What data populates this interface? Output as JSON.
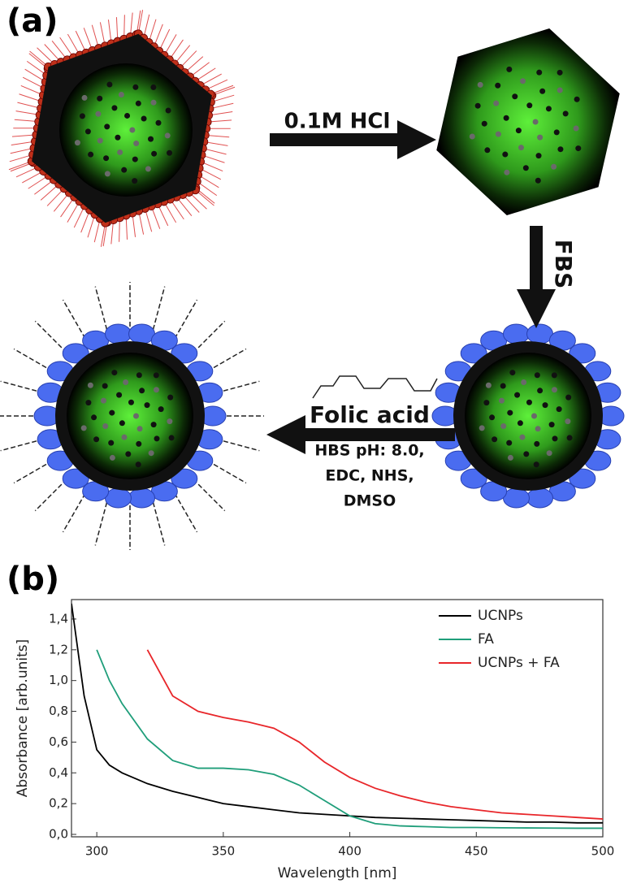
{
  "panel_a": {
    "label": "(a)",
    "step_1": "0.1M HCl",
    "step_2": "FBS",
    "step_3": {
      "title": "Folic acid",
      "conditions": [
        "HBS pH: 8.0,",
        "EDC, NHS,",
        "DMSO"
      ]
    }
  },
  "chart_data": {
    "type": "line",
    "panel_label": "(b)",
    "x_label": "Wavelength [nm]",
    "y_label": "Absorbance [arb.units]",
    "x": [
      290,
      295,
      300,
      305,
      310,
      320,
      330,
      340,
      350,
      360,
      370,
      380,
      390,
      400,
      410,
      420,
      430,
      440,
      450,
      460,
      470,
      480,
      490,
      500
    ],
    "series": [
      {
        "name": "UCNPs",
        "color": "#000000",
        "values": [
          1.5,
          0.9,
          0.55,
          0.45,
          0.4,
          0.33,
          0.28,
          0.24,
          0.2,
          0.18,
          0.16,
          0.14,
          0.13,
          0.12,
          0.11,
          0.105,
          0.1,
          0.095,
          0.09,
          0.085,
          0.08,
          0.08,
          0.075,
          0.075
        ]
      },
      {
        "name": "FA",
        "color": "#1f9e7a",
        "values": [
          null,
          null,
          1.2,
          1.0,
          0.85,
          0.62,
          0.48,
          0.43,
          0.43,
          0.42,
          0.39,
          0.32,
          0.22,
          0.12,
          0.07,
          0.055,
          0.05,
          0.045,
          0.045,
          0.043,
          0.042,
          0.041,
          0.04,
          0.04
        ]
      },
      {
        "name": "UCNPs + FA",
        "color": "#e8262a",
        "values": [
          null,
          null,
          null,
          null,
          null,
          1.2,
          0.9,
          0.8,
          0.76,
          0.73,
          0.69,
          0.6,
          0.47,
          0.37,
          0.3,
          0.25,
          0.21,
          0.18,
          0.16,
          0.14,
          0.13,
          0.12,
          0.11,
          0.1
        ]
      }
    ],
    "xlim": [
      290,
      500
    ],
    "xticks": [
      300,
      350,
      400,
      450,
      500
    ],
    "ylim": [
      0,
      1.5
    ],
    "yticks": [
      {
        "value": 0,
        "label": "0,0"
      },
      {
        "value": 0.2,
        "label": "0,2"
      },
      {
        "value": 0.4,
        "label": "0,4"
      },
      {
        "value": 0.6,
        "label": "0,6"
      },
      {
        "value": 0.8,
        "label": "0,8"
      },
      {
        "value": 1.0,
        "label": "1,0"
      },
      {
        "value": 1.2,
        "label": "1,2"
      },
      {
        "value": 1.4,
        "label": "1,4"
      }
    ],
    "legend": "upper right"
  }
}
